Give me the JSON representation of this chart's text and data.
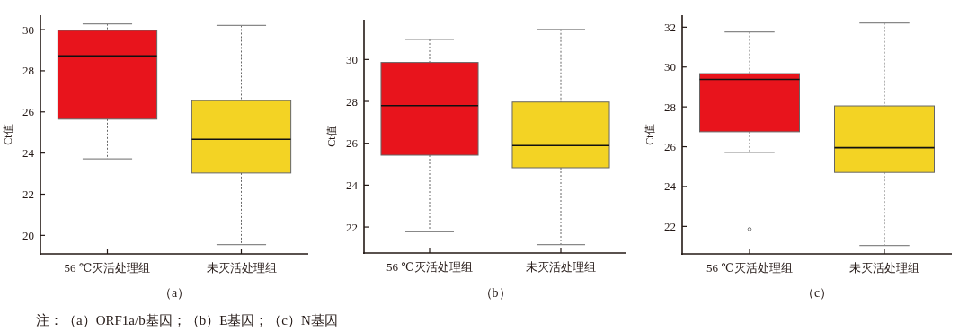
{
  "chart_data": [
    {
      "type": "box",
      "categories": [
        "56 ℃灭活处理组",
        "未灭活处理组"
      ],
      "colors": [
        "#e8141c",
        "#f3d324"
      ],
      "ylabel": "Ct值",
      "xlabel": "（a）",
      "ylim": [
        19.1,
        30.7
      ],
      "yticks": [
        20,
        22,
        24,
        26,
        28,
        30
      ],
      "boxes": [
        {
          "low": 23.72,
          "q1": 25.65,
          "median": 28.72,
          "q3": 29.96,
          "high": 30.28
        },
        {
          "low": 19.55,
          "q1": 23.03,
          "median": 24.67,
          "q3": 26.55,
          "high": 30.2
        }
      ],
      "annotations": [
        "注：（a）ORF1a/b基因；（b）E基因；（c）N基因"
      ]
    },
    {
      "type": "box",
      "categories": [
        "56 ℃灭活处理组",
        "未灭活处理组"
      ],
      "colors": [
        "#e8141c",
        "#f3d324"
      ],
      "ylabel": "Ct值",
      "xlabel": "（b）",
      "ylim": [
        20.76,
        31.9
      ],
      "yticks": [
        22,
        24,
        26,
        28,
        30
      ],
      "boxes": [
        {
          "low": 21.77,
          "q1": 25.43,
          "median": 27.8,
          "q3": 29.86,
          "high": 30.96
        },
        {
          "low": 21.16,
          "q1": 24.83,
          "median": 25.89,
          "q3": 27.97,
          "high": 31.44
        }
      ]
    },
    {
      "type": "box",
      "categories": [
        "56 ℃灭活处理组",
        "未灭活处理组"
      ],
      "colors": [
        "#e8141c",
        "#f3d324"
      ],
      "ylabel": "Ct值",
      "xlabel": "（c）",
      "ylim": [
        20.62,
        32.6
      ],
      "yticks": [
        22,
        24,
        26,
        28,
        30,
        32
      ],
      "boxes": [
        {
          "low": 25.71,
          "q1": 26.75,
          "median": 29.38,
          "q3": 29.67,
          "high": 31.76,
          "outliers": [
            21.86
          ]
        },
        {
          "low": 21.04,
          "q1": 24.71,
          "median": 25.95,
          "q3": 28.05,
          "high": 32.21
        }
      ]
    }
  ]
}
